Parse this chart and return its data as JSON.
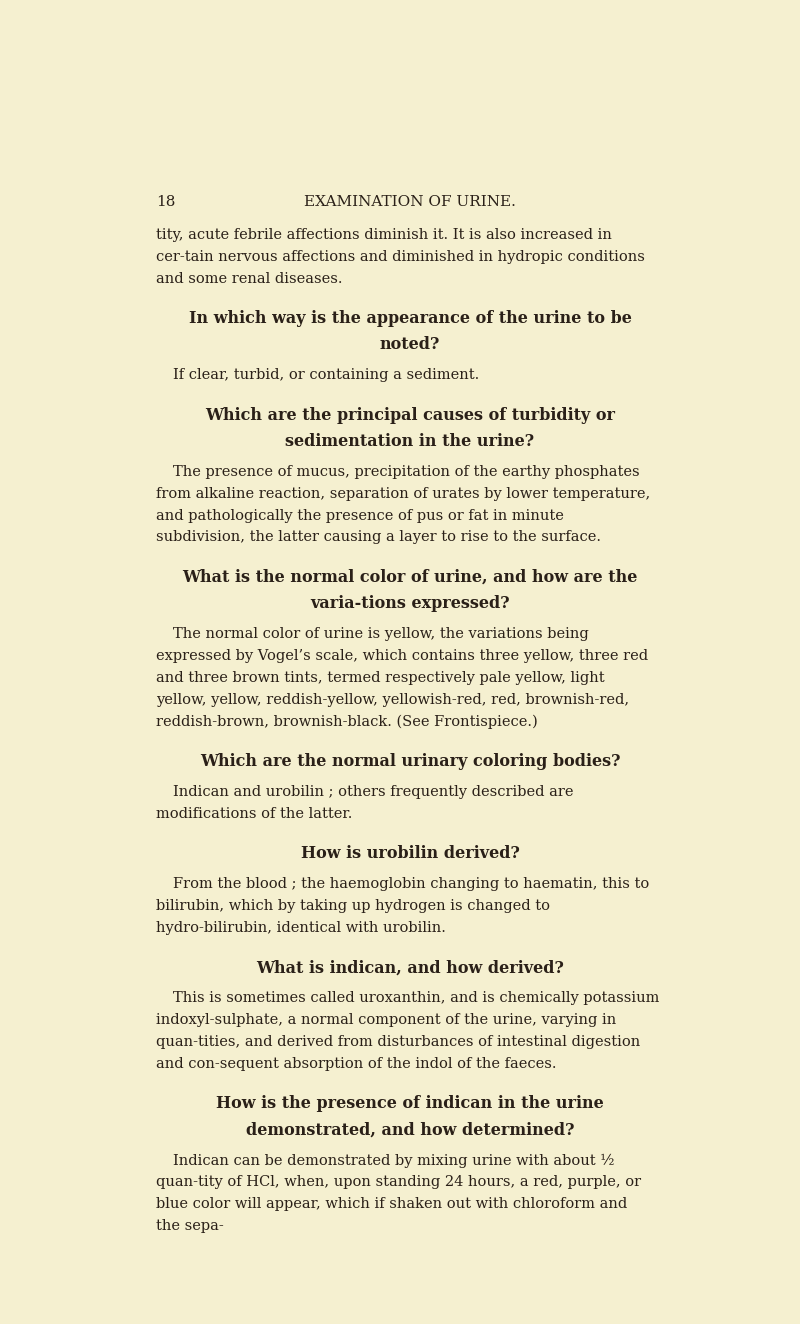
{
  "background_color": "#f5f0d0",
  "page_number": "18",
  "header_title": "EXAMINATION OF URINE.",
  "text_color": "#2a2018",
  "header_color": "#2a2018",
  "font_family": "serif",
  "content": [
    {
      "type": "body",
      "text": "tity, acute febrile affections diminish it.  It is also increased in cer-tain nervous affections and diminished in hydropic conditions and some renal diseases."
    },
    {
      "type": "heading",
      "text": "In which way is the appearance of the urine to be noted?"
    },
    {
      "type": "body_indent",
      "text": "If clear, turbid, or containing a sediment."
    },
    {
      "type": "heading",
      "text": "Which are the principal causes of turbidity or sedimentation in the urine?"
    },
    {
      "type": "body_indent",
      "text": "The presence of mucus, precipitation of the earthy phosphates from alkaline reaction, separation of urates by lower temperature, and pathologically the presence of pus or fat in minute subdivision, the latter causing a layer to rise to the surface."
    },
    {
      "type": "heading",
      "text": "What is the normal color of urine, and how are the varia-tions expressed?"
    },
    {
      "type": "body_indent",
      "text": "The normal color of urine is yellow, the variations being expressed by Vogel’s scale, which contains three yellow, three red and three brown tints, termed respectively pale yellow, light yellow, yellow, reddish-yellow, yellowish-red, red, brownish-red, reddish-brown, brownish-black.  (See Frontispiece.)"
    },
    {
      "type": "heading",
      "text": "Which are the normal urinary coloring bodies?"
    },
    {
      "type": "body_indent",
      "text": "Indican and urobilin ; others frequently described are modifications of the latter."
    },
    {
      "type": "heading",
      "text": "How is urobilin derived?"
    },
    {
      "type": "body_indent",
      "text": "From the blood ; the haemoglobin changing to haematin, this to bilirubin, which by taking up hydrogen is changed to hydro-bilirubin, identical with urobilin."
    },
    {
      "type": "heading",
      "text": "What is indican, and how derived?"
    },
    {
      "type": "body_indent",
      "text": "This is sometimes called uroxanthin, and is chemically potassium indoxyl-sulphate, a normal component of the urine, varying in quan-tities, and derived from disturbances of intestinal digestion and con-sequent absorption of the indol of the faeces."
    },
    {
      "type": "heading",
      "text": "How is the presence of indican in the urine demonstrated, and how determined?"
    },
    {
      "type": "body_indent",
      "text": "Indican can be demonstrated by mixing urine with about ½ quan-tity of HCl, when, upon standing 24 hours, a red, purple, or blue color will appear, which if shaken out with chloroform and the sepa-"
    }
  ]
}
